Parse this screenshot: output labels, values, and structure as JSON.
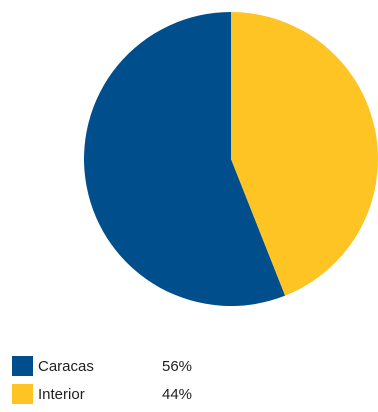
{
  "chart_data": {
    "type": "pie",
    "slices": [
      {
        "label": "Caracas",
        "value": 56,
        "display": "56%",
        "color": "#004f8c"
      },
      {
        "label": "Interior",
        "value": 44,
        "display": "44%",
        "color": "#fdc423"
      }
    ],
    "start": "12 o'clock",
    "direction": "counter-clockwise",
    "legend_position": "bottom-left"
  }
}
